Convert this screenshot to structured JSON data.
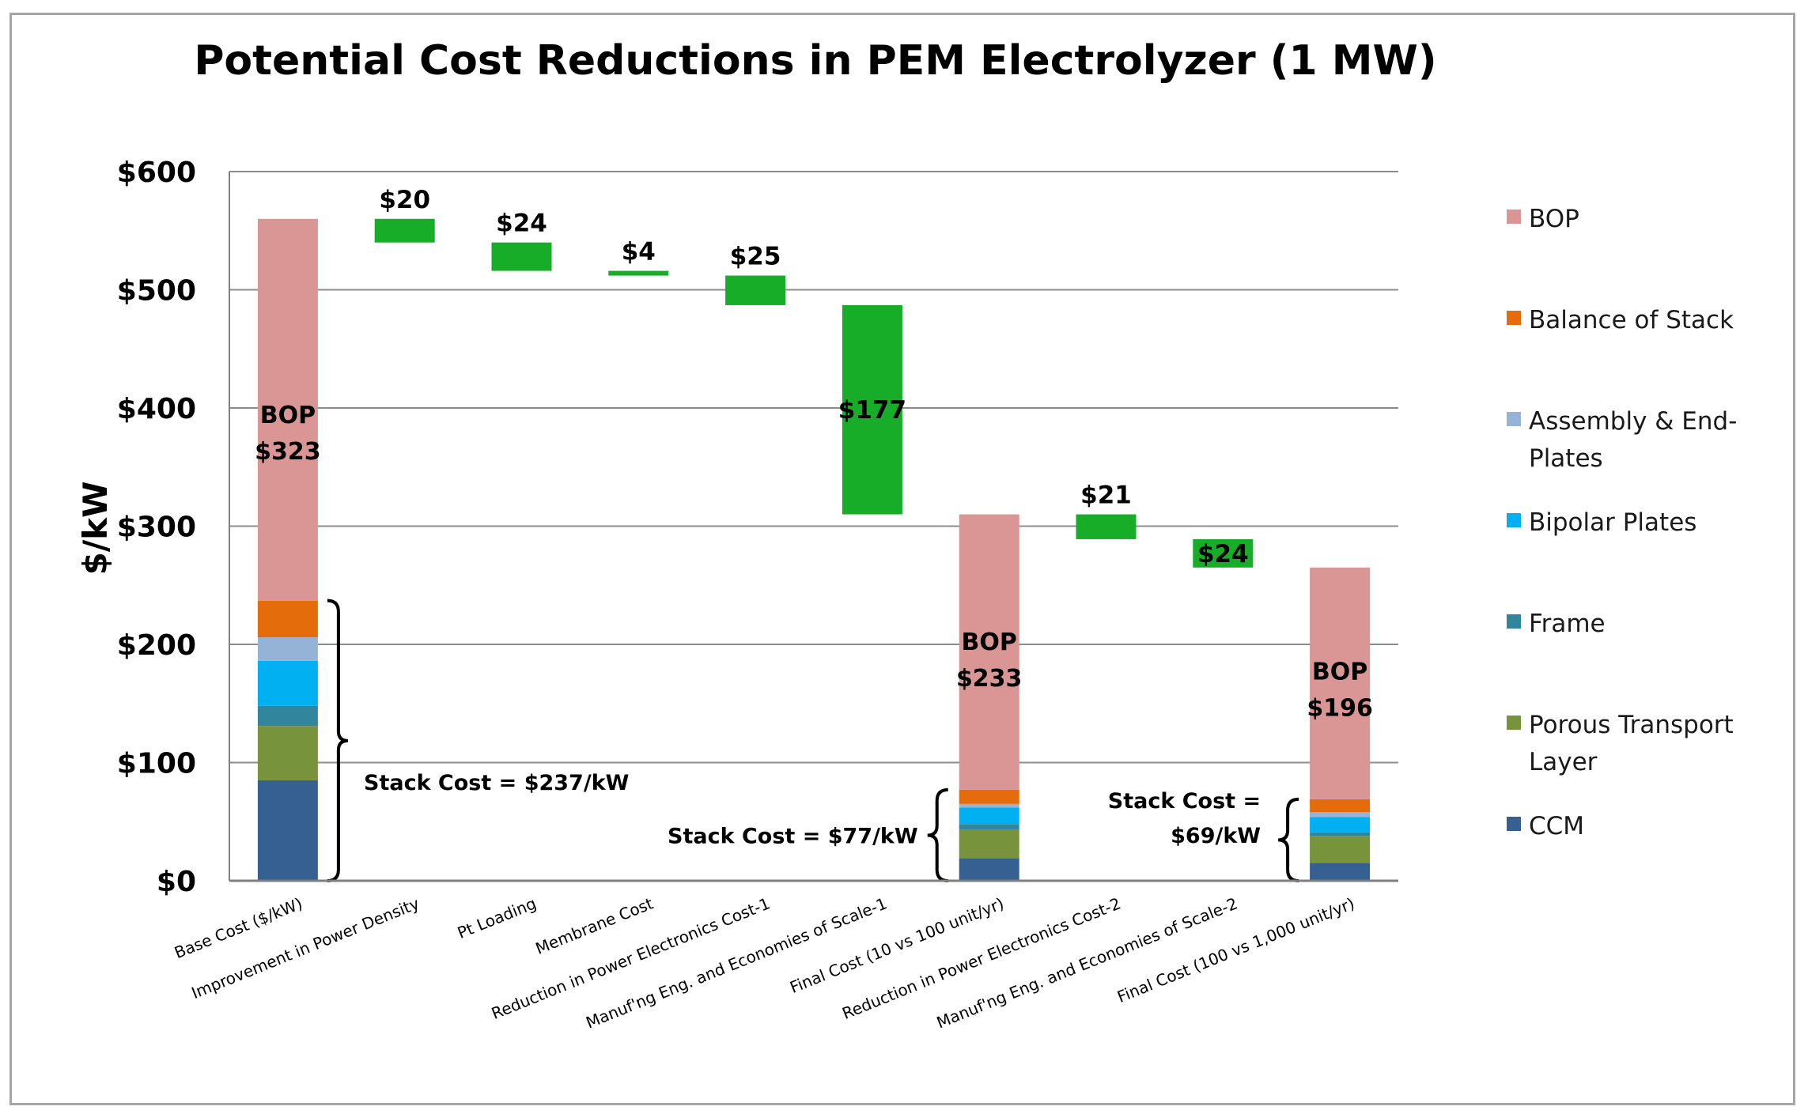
{
  "chart_data": {
    "type": "bar",
    "title": "Potential Cost Reductions in PEM Electrolyzer (1 MW)",
    "ylabel": "$/kW",
    "xlabel": "",
    "ylim": [
      0,
      600
    ],
    "yticks": [
      {
        "value": 0,
        "label": "$0"
      },
      {
        "value": 100,
        "label": "$100"
      },
      {
        "value": 200,
        "label": "$200"
      },
      {
        "value": 300,
        "label": "$300"
      },
      {
        "value": 400,
        "label": "$400"
      },
      {
        "value": 500,
        "label": "$500"
      },
      {
        "value": 600,
        "label": "$600"
      }
    ],
    "grid": true,
    "legend_position": "right",
    "reduction_color": "#17ad29",
    "legend": [
      {
        "name": "BOP",
        "color": "#d99694",
        "lines": [
          "BOP"
        ]
      },
      {
        "name": "Balance of Stack",
        "color": "#e46c0a",
        "lines": [
          "Balance of Stack"
        ]
      },
      {
        "name": "Assembly & End-Plates",
        "color": "#95b3d7",
        "lines": [
          "Assembly & End-",
          "Plates"
        ]
      },
      {
        "name": "Bipolar Plates",
        "color": "#00b0f0",
        "lines": [
          "Bipolar Plates"
        ]
      },
      {
        "name": "Frame",
        "color": "#31859c",
        "lines": [
          "Frame"
        ]
      },
      {
        "name": "Porous Transport Layer",
        "color": "#77933c",
        "lines": [
          "Porous Transport",
          "Layer"
        ]
      },
      {
        "name": "CCM",
        "color": "#376092",
        "lines": [
          "CCM"
        ]
      }
    ],
    "categories": [
      "Base Cost ($/kW)",
      "Improvement in Power Density",
      "Pt Loading",
      "Membrane Cost",
      "Reduction in Power Electronics Cost-1",
      "Manuf'ng Eng. and Economies of Scale-1",
      "Final Cost (10 vs 100 unit/yr)",
      "Reduction in Power Electronics Cost-2",
      "Manuf'ng Eng. and Economies of Scale-2",
      "Final Cost (100 vs 1,000 unit/yr)"
    ],
    "bars": [
      {
        "category": "Base Cost ($/kW)",
        "kind": "stacked",
        "segments": [
          {
            "name": "CCM",
            "value": 85
          },
          {
            "name": "Porous Transport Layer",
            "value": 46
          },
          {
            "name": "Frame",
            "value": 17
          },
          {
            "name": "Bipolar Plates",
            "value": 38
          },
          {
            "name": "Assembly & End-Plates",
            "value": 20
          },
          {
            "name": "Balance of Stack",
            "value": 31
          },
          {
            "name": "BOP",
            "value": 323
          }
        ],
        "total": 560,
        "label_lines": [
          "BOP",
          "$323"
        ],
        "label_at": 382,
        "stack_cost_label": "Stack Cost = $237/kW",
        "stack_cost_value": 237
      },
      {
        "category": "Improvement in Power Density",
        "kind": "reduction",
        "from": 560,
        "to": 540,
        "label": "$20"
      },
      {
        "category": "Pt Loading",
        "kind": "reduction",
        "from": 540,
        "to": 516,
        "label": "$24"
      },
      {
        "category": "Membrane Cost",
        "kind": "reduction",
        "from": 516,
        "to": 512,
        "label": "$4"
      },
      {
        "category": "Reduction in Power Electronics Cost-1",
        "kind": "reduction",
        "from": 512,
        "to": 487,
        "label": "$25"
      },
      {
        "category": "Manuf'ng Eng. and Economies of Scale-1",
        "kind": "reduction",
        "from": 487,
        "to": 310,
        "label": "$177",
        "label_inside": true
      },
      {
        "category": "Final Cost (10 vs 100 unit/yr)",
        "kind": "stacked",
        "segments": [
          {
            "name": "CCM",
            "value": 19
          },
          {
            "name": "Porous Transport Layer",
            "value": 24
          },
          {
            "name": "Frame",
            "value": 5
          },
          {
            "name": "Bipolar Plates",
            "value": 14
          },
          {
            "name": "Assembly & End-Plates",
            "value": 3
          },
          {
            "name": "Balance of Stack",
            "value": 12
          },
          {
            "name": "BOP",
            "value": 233
          }
        ],
        "total": 310,
        "label_lines": [
          "BOP",
          "$233"
        ],
        "label_at": 190,
        "stack_cost_label": "Stack Cost = $77/kW",
        "stack_cost_value": 77
      },
      {
        "category": "Reduction in Power Electronics Cost-2",
        "kind": "reduction",
        "from": 310,
        "to": 289,
        "label": "$21"
      },
      {
        "category": "Manuf'ng Eng. and Economies of Scale-2",
        "kind": "reduction",
        "from": 289,
        "to": 265,
        "label": "$24",
        "label_inside": true
      },
      {
        "category": "Final Cost (100 vs 1,000 unit/yr)",
        "kind": "stacked",
        "segments": [
          {
            "name": "CCM",
            "value": 15
          },
          {
            "name": "Porous Transport Layer",
            "value": 23
          },
          {
            "name": "Frame",
            "value": 3
          },
          {
            "name": "Bipolar Plates",
            "value": 13
          },
          {
            "name": "Assembly & End-Plates",
            "value": 4
          },
          {
            "name": "Balance of Stack",
            "value": 11
          },
          {
            "name": "BOP",
            "value": 196
          }
        ],
        "total": 265,
        "label_lines": [
          "BOP",
          "$196"
        ],
        "label_at": 165,
        "stack_cost_label_lines": [
          "Stack Cost =",
          "$69/kW"
        ],
        "stack_cost_value": 69
      }
    ]
  }
}
